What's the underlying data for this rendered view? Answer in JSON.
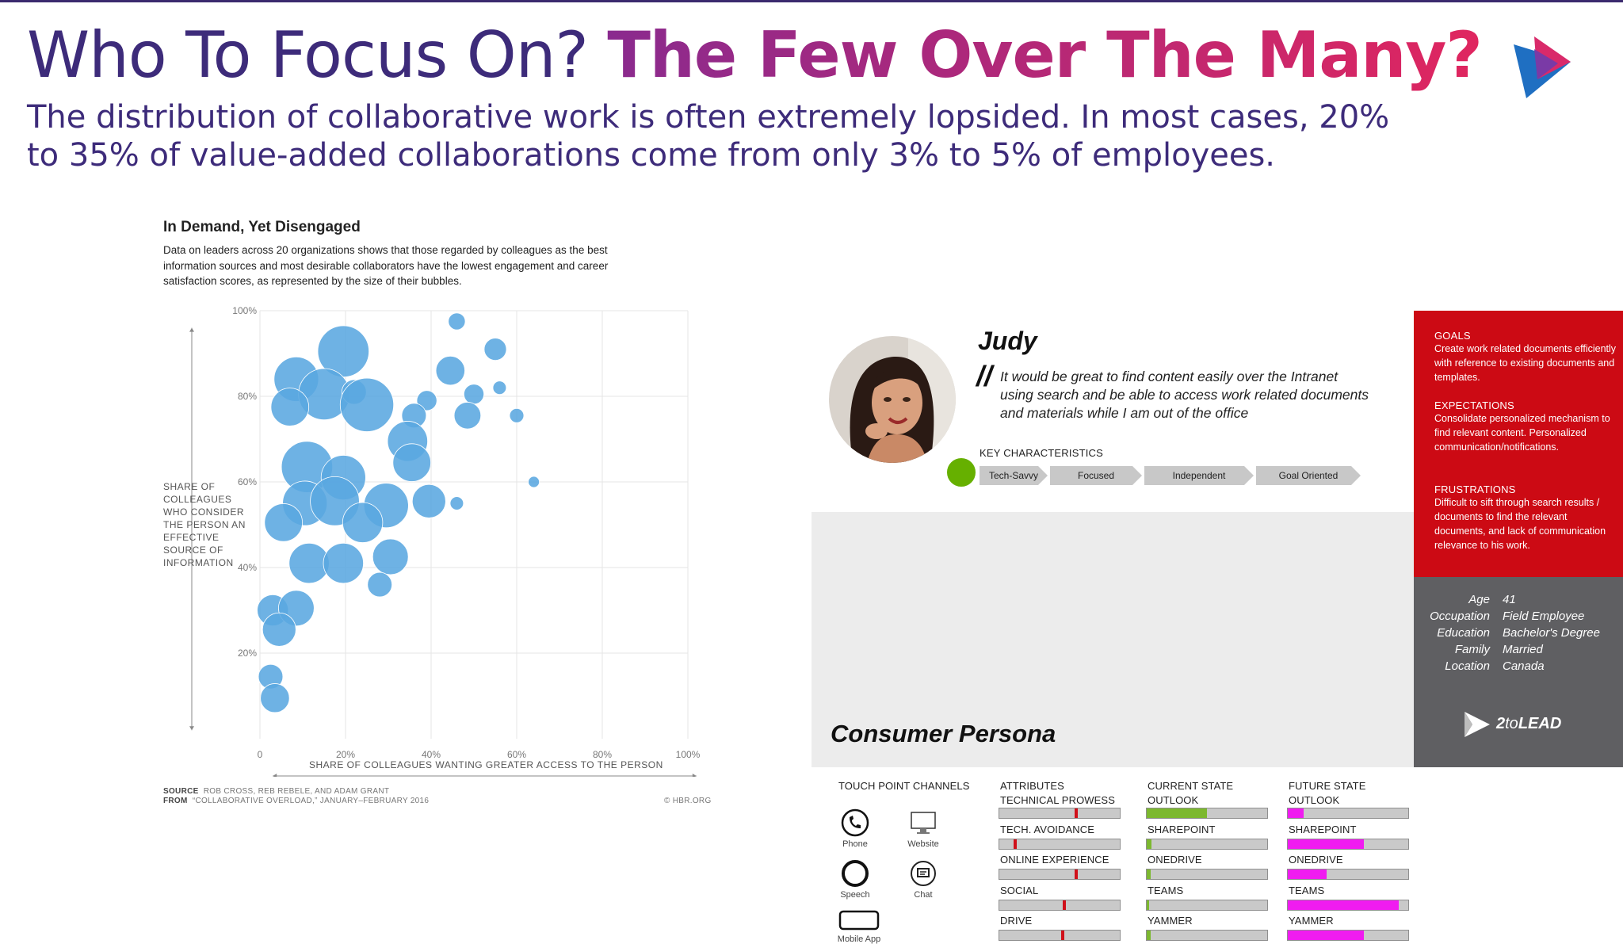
{
  "header": {
    "title_plain": "Who To Focus On?",
    "title_bold": "The Few Over The Many?",
    "subtitle": "The distribution of collaborative work is often extremely lopsided. In most cases, 20% to 35% of value-added collaborations come from only 3% to 5% of employees."
  },
  "chart": {
    "title": "In Demand, Yet Disengaged",
    "description": "Data on leaders across 20 organizations shows that those regarded by colleagues as the best information sources and most desirable collaborators have the lowest engagement and career satisfaction scores, as represented by the size of their bubbles.",
    "y_label": "SHARE OF COLLEAGUES WHO CONSIDER THE PERSON AN EFFECTIVE SOURCE OF INFORMATION",
    "x_label": "SHARE OF COLLEAGUES WANTING GREATER ACCESS TO THE PERSON",
    "source_label": "SOURCE",
    "source_text": "ROB CROSS, REB REBELE, AND ADAM GRANT",
    "from_label": "FROM",
    "from_text": "“COLLABORATIVE OVERLOAD,” JANUARY–FEBRUARY 2016",
    "copyright": "© HBR.ORG",
    "color": "#5aa7e0"
  },
  "chart_data": {
    "type": "scatter",
    "title": "In Demand, Yet Disengaged",
    "xlabel": "SHARE OF COLLEAGUES WANTING GREATER ACCESS TO THE PERSON",
    "ylabel": "SHARE OF COLLEAGUES WHO CONSIDER THE PERSON AN EFFECTIVE SOURCE OF INFORMATION",
    "xlim": [
      0,
      100
    ],
    "ylim": [
      0,
      100
    ],
    "x_ticks": [
      "0",
      "20%",
      "40%",
      "60%",
      "80%",
      "100%"
    ],
    "y_ticks": [
      "20%",
      "40%",
      "60%",
      "80%",
      "100%"
    ],
    "grid": true,
    "points": [
      {
        "x": 19.5,
        "y": 90.5,
        "size": 11.5
      },
      {
        "x": 8.5,
        "y": 84,
        "size": 10
      },
      {
        "x": 15,
        "y": 80.5,
        "size": 11.5
      },
      {
        "x": 22,
        "y": 81,
        "size": 5.5
      },
      {
        "x": 25,
        "y": 78,
        "size": 12
      },
      {
        "x": 7,
        "y": 77.5,
        "size": 8.5
      },
      {
        "x": 46,
        "y": 97.5,
        "size": 3.8
      },
      {
        "x": 55,
        "y": 91,
        "size": 5
      },
      {
        "x": 44.5,
        "y": 86,
        "size": 6.5
      },
      {
        "x": 56,
        "y": 82,
        "size": 3
      },
      {
        "x": 50,
        "y": 80.5,
        "size": 4.5
      },
      {
        "x": 39,
        "y": 79,
        "size": 4.5
      },
      {
        "x": 36,
        "y": 75.5,
        "size": 5.5
      },
      {
        "x": 48.5,
        "y": 75.5,
        "size": 6
      },
      {
        "x": 60,
        "y": 75.5,
        "size": 3.2
      },
      {
        "x": 34.5,
        "y": 69.5,
        "size": 9
      },
      {
        "x": 35.5,
        "y": 64.5,
        "size": 8.5
      },
      {
        "x": 11,
        "y": 63.5,
        "size": 11.5
      },
      {
        "x": 19.5,
        "y": 61,
        "size": 10
      },
      {
        "x": 10.5,
        "y": 55,
        "size": 10
      },
      {
        "x": 17.5,
        "y": 55.5,
        "size": 11
      },
      {
        "x": 29.5,
        "y": 54.5,
        "size": 10
      },
      {
        "x": 39.5,
        "y": 55.5,
        "size": 7.5
      },
      {
        "x": 46,
        "y": 55,
        "size": 3
      },
      {
        "x": 64,
        "y": 60,
        "size": 2.5
      },
      {
        "x": 5.5,
        "y": 50.5,
        "size": 8.5
      },
      {
        "x": 24,
        "y": 50.5,
        "size": 9
      },
      {
        "x": 11.5,
        "y": 41,
        "size": 9
      },
      {
        "x": 19.5,
        "y": 41,
        "size": 9
      },
      {
        "x": 30.5,
        "y": 42.5,
        "size": 8
      },
      {
        "x": 28,
        "y": 36,
        "size": 5.5
      },
      {
        "x": 3,
        "y": 30,
        "size": 7
      },
      {
        "x": 8.5,
        "y": 30.5,
        "size": 8
      },
      {
        "x": 4.5,
        "y": 25.5,
        "size": 7.5
      },
      {
        "x": 2.5,
        "y": 14.5,
        "size": 5.5
      },
      {
        "x": 3.5,
        "y": 9.5,
        "size": 6.5
      }
    ]
  },
  "persona": {
    "name": "Judy",
    "quote": "It would be great to find content easily over the Intranet using search and be able to access work related documents and materials while I am out of the office",
    "key_characteristics_label": "KEY CHARACTERISTICS",
    "characteristics": [
      "Tech-Savvy",
      "Focused",
      "Independent",
      "Goal Oriented"
    ],
    "title": "Consumer Persona",
    "touch_points_label": "TOUCH POINT CHANNELS",
    "touch_points": [
      {
        "label": "Phone",
        "icon": "phone-icon"
      },
      {
        "label": "Website",
        "icon": "monitor-icon"
      },
      {
        "label": "Speech",
        "icon": "speech-icon"
      },
      {
        "label": "Chat",
        "icon": "chat-icon"
      },
      {
        "label": "Mobile App",
        "icon": "mobile-app-icon"
      }
    ],
    "attributes": {
      "heading": "ATTRIBUTES",
      "rows": [
        {
          "label": "TECHNICAL PROWESS",
          "marker": 0.63
        },
        {
          "label": "TECH. AVOIDANCE",
          "marker": 0.12
        },
        {
          "label": "ONLINE EXPERIENCE",
          "marker": 0.63
        },
        {
          "label": "SOCIAL",
          "marker": 0.53
        },
        {
          "label": "DRIVE",
          "marker": 0.52
        }
      ]
    },
    "current_state": {
      "heading": "CURRENT STATE",
      "color": "#7cb82f",
      "rows": [
        {
          "label": "OUTLOOK",
          "value": 0.5
        },
        {
          "label": "SHAREPOINT",
          "value": 0.04
        },
        {
          "label": "ONEDRIVE",
          "value": 0.03
        },
        {
          "label": "TEAMS",
          "value": 0.02
        },
        {
          "label": "YAMMER",
          "value": 0.03
        }
      ]
    },
    "future_state": {
      "heading": "FUTURE STATE",
      "color": "#f01cf0",
      "rows": [
        {
          "label": "OUTLOOK",
          "value": 0.13
        },
        {
          "label": "SHAREPOINT",
          "value": 0.63
        },
        {
          "label": "ONEDRIVE",
          "value": 0.32
        },
        {
          "label": "TEAMS",
          "value": 0.92
        },
        {
          "label": "YAMMER",
          "value": 0.63
        }
      ]
    },
    "goals_heading": "GOALS",
    "goals_text": "Create work related documents efficiently with reference to existing documents and templates.",
    "expectations_heading": "EXPECTATIONS",
    "expectations_text": "Consolidate personalized mechanism to find relevant content. Personalized communication/notifications.",
    "frustrations_heading": "FRUSTRATIONS",
    "frustrations_text": "Difficult to sift through search results / documents to find the relevant documents, and lack of communication relevance to his work.",
    "demographics": [
      {
        "key": "Age",
        "value": "41"
      },
      {
        "key": "Occupation",
        "value": "Field Employee"
      },
      {
        "key": "Education",
        "value": "Bachelor's Degree"
      },
      {
        "key": "Family",
        "value": "Married"
      },
      {
        "key": "Location",
        "value": "Canada"
      }
    ],
    "brand_2": "2",
    "brand_to": "to",
    "brand_lead": "LEAD",
    "red_color": "#cc0a14"
  }
}
